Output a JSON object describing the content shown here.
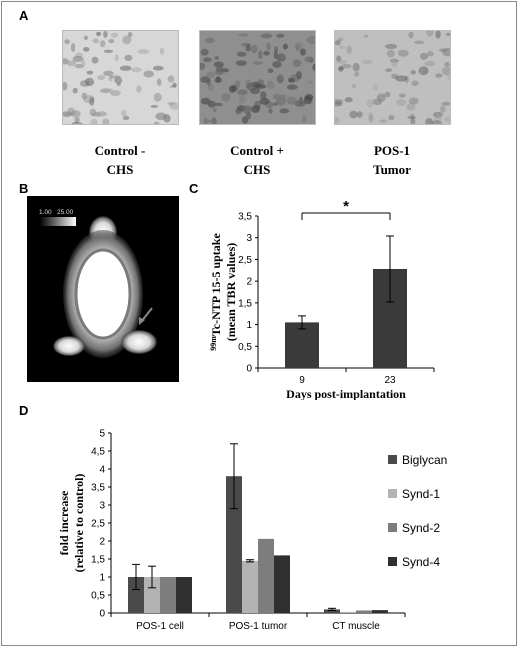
{
  "panel_A": {
    "letter": "A",
    "images": [
      {
        "caption_lines": [
          "Control  -",
          "CHS"
        ],
        "tone": "#d7d7d7"
      },
      {
        "caption_lines": [
          "Control +",
          "CHS"
        ],
        "tone": "#8f8f8f"
      },
      {
        "caption_lines": [
          "POS-1",
          "Tumor"
        ],
        "tone": "#bfbfbf"
      }
    ]
  },
  "panel_B": {
    "letter": "B",
    "scale_min": "1.00",
    "scale_max": "25.00"
  },
  "chart_data": [
    {
      "type": "bar",
      "panel": "C",
      "categories": [
        "9",
        "23"
      ],
      "values": [
        1.05,
        2.28
      ],
      "errors": [
        0.15,
        0.76
      ],
      "ylabel_lines": [
        "99mTc-NTP 15-5 uptake",
        "(mean TBR values)"
      ],
      "ylabel_superscript": "99m",
      "ylabel_main": "Tc-NTP 15-5 uptake",
      "ylabel_second": "(mean TBR values)",
      "xlabel": "Days post-implantation",
      "ylim": [
        0,
        3.5
      ],
      "yticks": [
        "0",
        "0,5",
        "1",
        "1,5",
        "2",
        "2,5",
        "3",
        "3,5"
      ],
      "significance": "*",
      "bar_color": "#3a3a3a"
    },
    {
      "type": "bar",
      "panel": "D",
      "categories": [
        "POS-1 cell",
        "POS-1 tumor",
        "CT muscle"
      ],
      "series": [
        {
          "name": "Biglycan",
          "values": [
            1.0,
            3.8,
            0.1
          ],
          "errors": [
            0.35,
            0.9,
            0.03
          ],
          "color": "#4a4a4a"
        },
        {
          "name": "Synd-1",
          "values": [
            1.0,
            1.45,
            0.03
          ],
          "errors": [
            0.3,
            0.03,
            0.0
          ],
          "color": "#b3b3b3"
        },
        {
          "name": "Synd-2",
          "values": [
            1.0,
            2.06,
            0.07
          ],
          "errors": [
            0,
            0,
            0
          ],
          "color": "#7d7d7d"
        },
        {
          "name": "Synd-4",
          "values": [
            1.0,
            1.6,
            0.08
          ],
          "errors": [
            0,
            0,
            0
          ],
          "color": "#2f2f2f"
        }
      ],
      "ylabel_lines": [
        "fold increase",
        "(relative to control)"
      ],
      "ylim": [
        0,
        5
      ],
      "yticks": [
        "0",
        "0,5",
        "1",
        "1,5",
        "2",
        "2,5",
        "3",
        "3,5",
        "4",
        "4,5",
        "5"
      ],
      "legend_position": "right"
    }
  ],
  "panel_C_letter": "C",
  "panel_D_letter": "D"
}
